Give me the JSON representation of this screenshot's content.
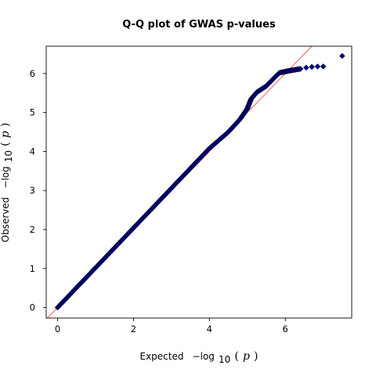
{
  "chart_data": {
    "type": "scatter",
    "title": "Q-Q plot of GWAS p-values",
    "xlabel": {
      "prefix": "Expected",
      "math": "−log",
      "sub": "10",
      "open": "(",
      "var": "p",
      "close": ")"
    },
    "ylabel": {
      "prefix": "Observed",
      "math": "−log",
      "sub": "10",
      "open": "(",
      "var": "p",
      "close": ")"
    },
    "xlim": [
      -0.3,
      7.75
    ],
    "ylim": [
      -0.27,
      6.7
    ],
    "xticks": [
      0,
      2,
      4,
      6
    ],
    "yticks": [
      0,
      1,
      2,
      3,
      4,
      5,
      6
    ],
    "grid": false,
    "legend": "none",
    "diagonal": {
      "from": [
        -0.3,
        -0.3
      ],
      "to": [
        6.7,
        6.7
      ],
      "color": "#ff5a5a"
    },
    "colors": {
      "point_fill": "#00008b",
      "point_edge": "#000040",
      "frame": "#000000"
    },
    "marker": "diamond",
    "curve": [
      [
        0.0,
        0.0
      ],
      [
        4.0,
        4.08
      ],
      [
        4.5,
        4.5
      ],
      [
        4.8,
        4.82
      ],
      [
        5.0,
        5.1
      ],
      [
        5.1,
        5.35
      ],
      [
        5.25,
        5.52
      ],
      [
        5.5,
        5.68
      ],
      [
        5.75,
        5.93
      ],
      [
        5.85,
        6.02
      ],
      [
        6.1,
        6.07
      ],
      [
        6.4,
        6.12
      ]
    ],
    "top_points": [
      {
        "x": 6.55,
        "y": 6.15
      },
      {
        "x": 6.7,
        "y": 6.17
      },
      {
        "x": 6.85,
        "y": 6.18
      },
      {
        "x": 7.0,
        "y": 6.18
      },
      {
        "x": 7.5,
        "y": 6.45
      }
    ]
  }
}
